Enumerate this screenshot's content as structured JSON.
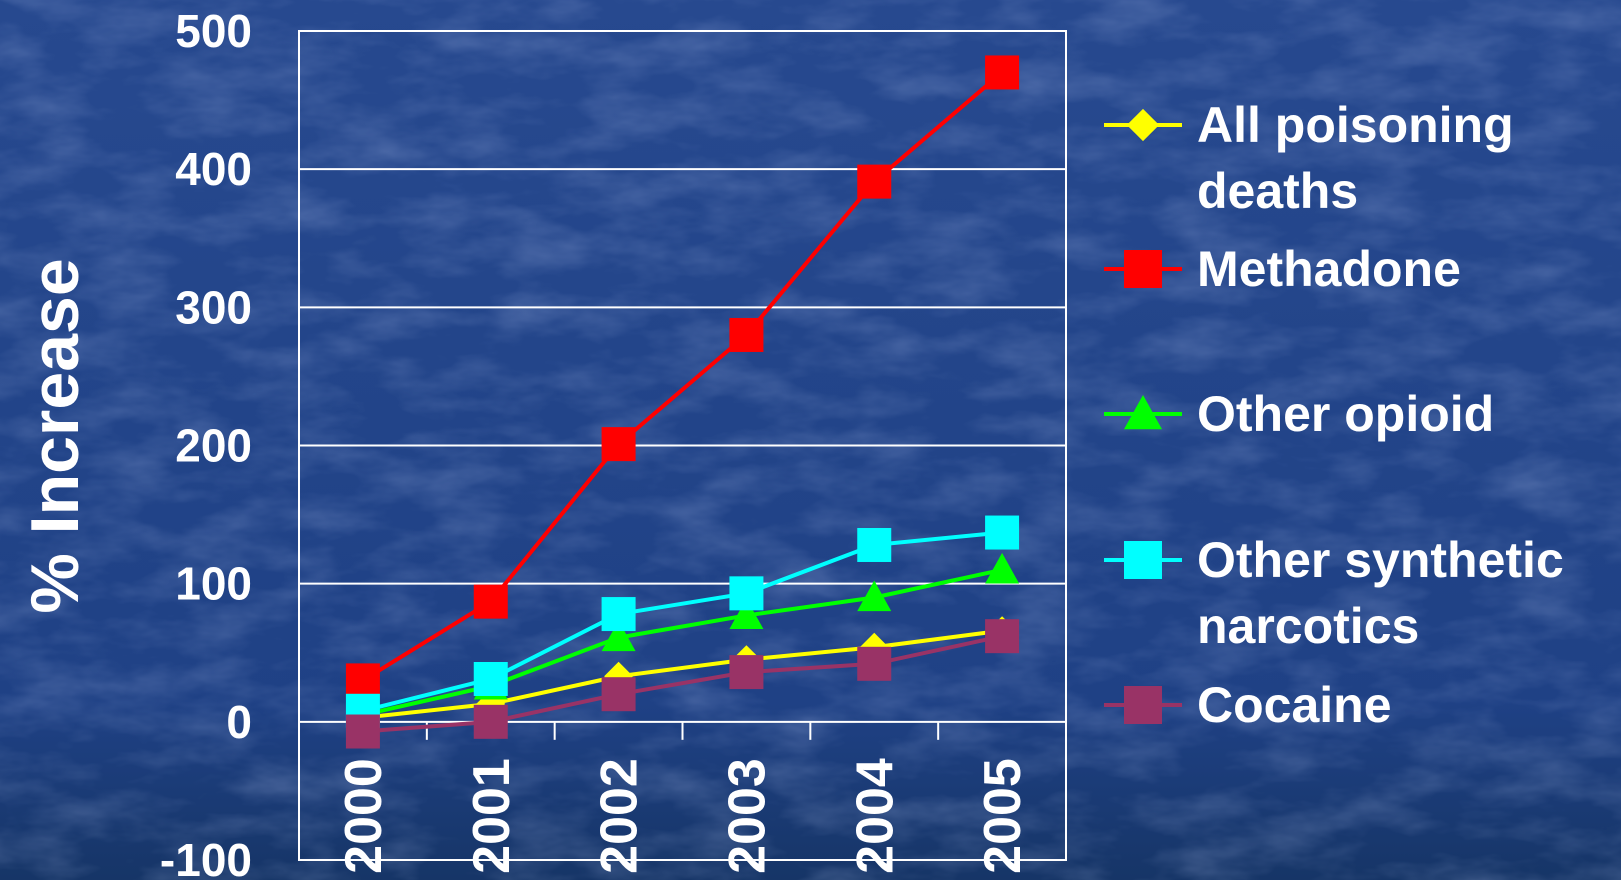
{
  "chart_data": {
    "type": "line",
    "title": "",
    "xlabel": "",
    "ylabel": "% Increase",
    "categories": [
      "2000",
      "2001",
      "2002",
      "2003",
      "2004",
      "2005"
    ],
    "ylim": [
      -100,
      500
    ],
    "yticks": [
      -100,
      0,
      100,
      200,
      300,
      400,
      500
    ],
    "grid": true,
    "legend_position": "right",
    "series": [
      {
        "name": "All poisoning deaths",
        "color": "#ffff00",
        "marker": "diamond",
        "values": [
          3,
          13,
          33,
          45,
          54,
          66
        ]
      },
      {
        "name": "Methadone",
        "color": "#ff0000",
        "marker": "square",
        "values": [
          30,
          87,
          201,
          280,
          391,
          470
        ]
      },
      {
        "name": "Other opioid",
        "color": "#00ff00",
        "marker": "triangle",
        "values": [
          5,
          26,
          61,
          77,
          90,
          110
        ]
      },
      {
        "name": "Other synthetic narcotics",
        "color": "#00ffff",
        "marker": "square",
        "values": [
          8,
          31,
          78,
          93,
          128,
          137
        ]
      },
      {
        "name": "Cocaine",
        "color": "#993366",
        "marker": "square",
        "values": [
          -7,
          0,
          20,
          36,
          42,
          62
        ]
      }
    ]
  },
  "legend_lines": [
    [
      "All poisoning",
      "deaths"
    ],
    [
      "Methadone"
    ],
    [
      "Other opioid"
    ],
    [
      "Other synthetic",
      "narcotics"
    ],
    [
      "Cocaine"
    ]
  ]
}
